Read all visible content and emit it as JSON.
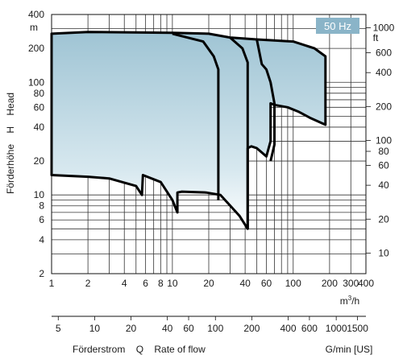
{
  "chart_data": {
    "type": "area",
    "badge": "50 Hz",
    "x_axis": {
      "scale": "log",
      "range": [
        1,
        400
      ],
      "unit_pre": "m",
      "unit_sup": "3",
      "unit_post": "/h",
      "ticks": [
        1,
        2,
        4,
        6,
        8,
        10,
        20,
        40,
        60,
        100,
        200,
        300,
        400
      ],
      "tick_labels": [
        "1",
        "2",
        "4",
        "6",
        "8",
        "10",
        "20",
        "40",
        "60",
        "100",
        "200",
        "300",
        "400"
      ]
    },
    "x2_axis": {
      "scale": "log",
      "unit": "G/min [US]",
      "ticks": [
        5,
        10,
        20,
        40,
        60,
        100,
        200,
        400,
        600,
        1000,
        1500
      ],
      "tick_labels": [
        "5",
        "10",
        "20",
        "40",
        "60",
        "100",
        "200",
        "400",
        "600",
        "1000",
        "1500"
      ]
    },
    "y_axis": {
      "scale": "log",
      "range": [
        2,
        400
      ],
      "unit": "m",
      "ticks": [
        2,
        4,
        6,
        8,
        10,
        20,
        40,
        60,
        80,
        100,
        200,
        400
      ],
      "tick_labels": [
        "2",
        "4",
        "6",
        "8",
        "10",
        "20",
        "40",
        "60",
        "80",
        "100",
        "200",
        "400"
      ]
    },
    "y2_axis": {
      "scale": "log",
      "unit": "ft",
      "ticks": [
        10,
        20,
        40,
        60,
        80,
        100,
        200,
        400,
        600,
        1000
      ],
      "tick_labels": [
        "10",
        "20",
        "40",
        "60",
        "80",
        "100",
        "200",
        "400",
        "600",
        "1000"
      ]
    },
    "ylabel_parts": [
      "Förderhöhe",
      "H",
      "Head"
    ],
    "xlabel_parts": [
      "Förderstrom",
      "Q",
      "Rate of flow"
    ],
    "envelope": {
      "points": [
        [
          1,
          270
        ],
        [
          2,
          280
        ],
        [
          10,
          275
        ],
        [
          20,
          270
        ],
        [
          30,
          250
        ],
        [
          50,
          240
        ],
        [
          100,
          230
        ],
        [
          150,
          200
        ],
        [
          185,
          170
        ],
        [
          185,
          42
        ],
        [
          140,
          48
        ],
        [
          110,
          55
        ],
        [
          90,
          60
        ],
        [
          70,
          63
        ],
        [
          65,
          65
        ],
        [
          65,
          30
        ],
        [
          60,
          22
        ],
        [
          50,
          26
        ],
        [
          45,
          27
        ],
        [
          42,
          26
        ],
        [
          42,
          5
        ],
        [
          36,
          6.5
        ],
        [
          25,
          10
        ],
        [
          19,
          10.5
        ],
        [
          12,
          10.7
        ],
        [
          11,
          10.5
        ],
        [
          11,
          7
        ],
        [
          10,
          9
        ],
        [
          8,
          13
        ],
        [
          5.7,
          15
        ],
        [
          5.6,
          10
        ],
        [
          5,
          12
        ],
        [
          3,
          14
        ],
        [
          2,
          14.5
        ],
        [
          1,
          15
        ]
      ]
    },
    "boundaries": [
      {
        "points": [
          [
            10,
            270
          ],
          [
            18,
            230
          ],
          [
            22,
            170
          ],
          [
            24,
            130
          ],
          [
            24,
            9
          ]
        ]
      },
      {
        "points": [
          [
            30,
            250
          ],
          [
            38,
            200
          ],
          [
            42,
            150
          ],
          [
            42,
            5
          ]
        ]
      },
      {
        "points": [
          [
            50,
            240
          ],
          [
            55,
            145
          ],
          [
            60,
            130
          ],
          [
            65,
            100
          ],
          [
            70,
            65
          ],
          [
            70,
            28
          ],
          [
            65,
            20
          ]
        ]
      }
    ]
  }
}
